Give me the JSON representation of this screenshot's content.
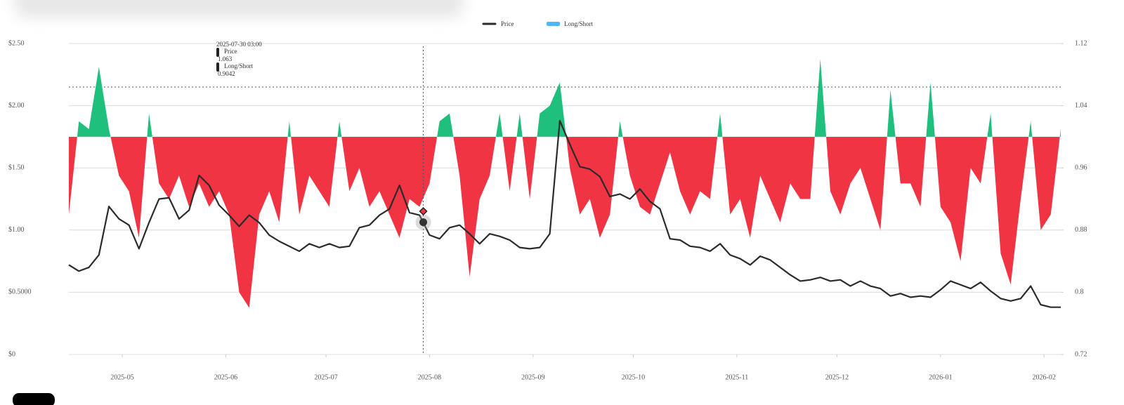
{
  "chart_data": {
    "type": "line",
    "legend": "top",
    "grid": true,
    "x": [
      "2025-04-15",
      "2025-04-18",
      "2025-04-21",
      "2025-04-24",
      "2025-04-27",
      "2025-04-30",
      "2025-05-03",
      "2025-05-06",
      "2025-05-09",
      "2025-05-12",
      "2025-05-15",
      "2025-05-18",
      "2025-05-21",
      "2025-05-24",
      "2025-05-27",
      "2025-05-30",
      "2025-06-02",
      "2025-06-05",
      "2025-06-08",
      "2025-06-11",
      "2025-06-14",
      "2025-06-17",
      "2025-06-20",
      "2025-06-23",
      "2025-06-26",
      "2025-06-29",
      "2025-07-02",
      "2025-07-05",
      "2025-07-08",
      "2025-07-11",
      "2025-07-14",
      "2025-07-17",
      "2025-07-20",
      "2025-07-23",
      "2025-07-26",
      "2025-07-29",
      "2025-08-01",
      "2025-08-04",
      "2025-08-07",
      "2025-08-10",
      "2025-08-13",
      "2025-08-16",
      "2025-08-19",
      "2025-08-22",
      "2025-08-25",
      "2025-08-28",
      "2025-08-31",
      "2025-09-03",
      "2025-09-06",
      "2025-09-09",
      "2025-09-12",
      "2025-09-15",
      "2025-09-18",
      "2025-09-21",
      "2025-09-24",
      "2025-09-27",
      "2025-09-30",
      "2025-10-03",
      "2025-10-06",
      "2025-10-09",
      "2025-10-12",
      "2025-10-15",
      "2025-10-18",
      "2025-10-21",
      "2025-10-24",
      "2025-10-27",
      "2025-10-30",
      "2025-11-02",
      "2025-11-05",
      "2025-11-08",
      "2025-11-11",
      "2025-11-14",
      "2025-11-17",
      "2025-11-20",
      "2025-11-23",
      "2025-11-26",
      "2025-11-29",
      "2025-12-02",
      "2025-12-05",
      "2025-12-08",
      "2025-12-11",
      "2025-12-14",
      "2025-12-17",
      "2025-12-20",
      "2025-12-23",
      "2025-12-26",
      "2025-12-29",
      "2026-01-01",
      "2026-01-04",
      "2026-01-07",
      "2026-01-10",
      "2026-01-13",
      "2026-01-16",
      "2026-01-19",
      "2026-01-22",
      "2026-01-25",
      "2026-01-28",
      "2026-01-31",
      "2026-02-03",
      "2026-02-06"
    ],
    "xticks": [
      "2025-05",
      "2025-06",
      "2025-07",
      "2025-08",
      "2025-09",
      "2025-10",
      "2025-11",
      "2025-12",
      "2026-01",
      "2026-02"
    ],
    "ylim": [
      0,
      2.5
    ],
    "yticks": [
      {
        "value": 0,
        "label": "$0"
      },
      {
        "value": 0.5,
        "label": "$0.5000"
      },
      {
        "value": 1,
        "label": "$1.00"
      },
      {
        "value": 1.5,
        "label": "$1.50"
      },
      {
        "value": 2,
        "label": "$2.00"
      },
      {
        "value": 2.5,
        "label": "$2.50"
      }
    ],
    "y2lim": [
      0.72,
      1.12
    ],
    "y2ticks": [
      0.72,
      0.8,
      0.88,
      0.96,
      1.04,
      1.12
    ],
    "series": [
      {
        "name": "Price",
        "color": "#2b2b2b",
        "values": [
          0.72,
          0.67,
          0.7,
          0.8,
          1.19,
          1.09,
          1.04,
          0.85,
          1.06,
          1.25,
          1.26,
          1.09,
          1.16,
          1.44,
          1.36,
          1.2,
          1.12,
          1.03,
          1.12,
          1.06,
          0.96,
          0.91,
          0.87,
          0.83,
          0.89,
          0.86,
          0.89,
          0.86,
          0.87,
          1.02,
          1.04,
          1.12,
          1.17,
          1.36,
          1.14,
          1.12,
          0.96,
          0.93,
          1.02,
          1.04,
          0.97,
          0.89,
          0.97,
          0.95,
          0.92,
          0.86,
          0.85,
          0.86,
          0.97,
          1.88,
          1.69,
          1.51,
          1.49,
          1.43,
          1.27,
          1.29,
          1.25,
          1.33,
          1.23,
          1.17,
          0.93,
          0.92,
          0.87,
          0.86,
          0.83,
          0.89,
          0.8,
          0.77,
          0.72,
          0.79,
          0.76,
          0.7,
          0.64,
          0.59,
          0.6,
          0.62,
          0.59,
          0.6,
          0.55,
          0.59,
          0.55,
          0.53,
          0.47,
          0.49,
          0.46,
          0.47,
          0.46,
          0.52,
          0.59,
          0.56,
          0.53,
          0.58,
          0.51,
          0.45,
          0.43,
          0.45,
          0.55,
          0.4,
          0.38,
          0.38
        ]
      },
      {
        "name": "Long/Short",
        "color": "#4fb6f7",
        "axis": "y2",
        "type": "area",
        "baseline": 1,
        "fill_above": "#1fbf7e",
        "fill_below": "#f03444",
        "values": [
          0.9,
          1.02,
          1.01,
          1.09,
          1.01,
          0.95,
          0.93,
          0.87,
          1.03,
          0.94,
          0.92,
          0.95,
          0.91,
          0.94,
          0.91,
          0.93,
          0.9,
          0.8,
          0.78,
          0.9,
          0.93,
          0.89,
          1.02,
          0.9,
          0.95,
          0.93,
          0.91,
          1.02,
          0.93,
          0.96,
          0.91,
          0.93,
          0.9,
          0.87,
          0.92,
          0.91,
          0.94,
          1.02,
          1.03,
          0.95,
          0.82,
          0.92,
          0.95,
          1.03,
          0.93,
          1.03,
          0.92,
          1.03,
          1.04,
          1.07,
          0.96,
          0.9,
          0.92,
          0.87,
          0.9,
          1.02,
          0.95,
          0.91,
          0.9,
          0.94,
          0.98,
          0.93,
          0.9,
          0.93,
          0.92,
          1.03,
          0.9,
          0.92,
          0.87,
          0.95,
          0.92,
          0.89,
          0.94,
          0.92,
          0.92,
          1.1,
          0.93,
          0.9,
          0.94,
          0.96,
          0.92,
          0.88,
          1.06,
          0.94,
          0.94,
          0.91,
          1.07,
          0.91,
          0.89,
          0.84,
          0.96,
          0.94,
          1.03,
          0.85,
          0.81,
          0.92,
          1.02,
          0.88,
          0.9,
          1.01
        ]
      }
    ],
    "tooltip": {
      "x": "2025-07-30 03:00",
      "values": [
        1.063,
        0.9042
      ]
    }
  }
}
